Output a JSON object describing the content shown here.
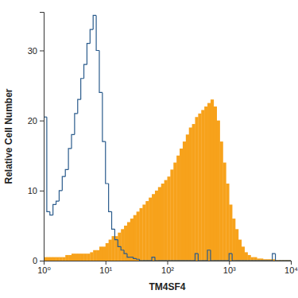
{
  "chart_data": {
    "type": "histogram",
    "x_label": "TM4SF4",
    "y_label": "Relative Cell Number",
    "log": "x",
    "grid": false,
    "xlim": [
      1,
      10000
    ],
    "xticks": [
      {
        "value": 1,
        "label": "10⁰"
      },
      {
        "value": 10,
        "label": "10¹"
      },
      {
        "value": 100,
        "label": "10²"
      },
      {
        "value": 1000,
        "label": "10³"
      },
      {
        "value": 10000,
        "label": "10⁴"
      }
    ],
    "ylim": [
      0,
      35.5
    ],
    "yticks": [
      0,
      10,
      20,
      30
    ],
    "bins": [
      1,
      1.122,
      1.259,
      1.413,
      1.585,
      1.778,
      1.995,
      2.239,
      2.512,
      2.818,
      3.162,
      3.548,
      3.981,
      4.467,
      5.012,
      5.623,
      6.31,
      7.079,
      7.943,
      8.913,
      10,
      11.22,
      12.59,
      14.13,
      15.85,
      17.78,
      19.95,
      22.39,
      25.12,
      28.18,
      31.62,
      35.48,
      39.81,
      44.67,
      50.12,
      56.23,
      63.1,
      70.79,
      79.43,
      89.13,
      100,
      112.2,
      125.9,
      141.3,
      158.5,
      177.8,
      199.5,
      223.9,
      251.2,
      281.8,
      316.2,
      354.8,
      398.1,
      446.7,
      501.2,
      562.3,
      631,
      707.9,
      794.3,
      891.3,
      1000,
      1122,
      1259,
      1413,
      1585,
      1778,
      1995,
      2239,
      2512,
      2818,
      3162,
      3548,
      3981,
      4467,
      5012,
      5623,
      6310,
      7079,
      7943,
      8913,
      10000
    ],
    "series": [
      {
        "type": "bar",
        "color": "#f7a21b",
        "values": [
          0.5,
          0.5,
          0.5,
          0.5,
          0.5,
          0.5,
          0.5,
          0.8,
          0.8,
          1,
          1,
          1,
          1,
          1,
          1,
          1.2,
          1.5,
          1.5,
          2,
          2,
          2.5,
          3,
          3.5,
          3.5,
          4,
          4.5,
          5,
          5.5,
          6,
          6.5,
          7,
          7.5,
          8,
          8.5,
          9,
          9.5,
          10,
          10.5,
          11,
          11.5,
          12,
          13,
          14,
          15,
          16,
          17,
          18,
          19,
          19.5,
          20.5,
          21,
          21.5,
          22,
          22.5,
          23,
          22,
          20,
          17,
          14,
          11,
          8,
          6,
          4.5,
          3,
          2,
          1.2,
          0.8,
          0.5,
          0.5,
          0.3,
          0.3,
          0.2,
          0.2,
          0.2,
          0.2,
          0.1,
          0.1,
          0.1,
          0.1,
          0.1
        ]
      },
      {
        "type": "step",
        "color": "#2a5b8c",
        "values": [
          20.5,
          7,
          6.5,
          8,
          8.5,
          10,
          12,
          13,
          16,
          18,
          21,
          23,
          26,
          28,
          31,
          33,
          35,
          30,
          24,
          17,
          11,
          7,
          4.5,
          3,
          2,
          1.5,
          1,
          0.5,
          0.5,
          0.3,
          0.2,
          0,
          0,
          0,
          0,
          0.5,
          0,
          0,
          0,
          0,
          0,
          0,
          0,
          0,
          0,
          0,
          0,
          0,
          0,
          1,
          0,
          0,
          0,
          1.5,
          0,
          0,
          0,
          0,
          0,
          0,
          1,
          0,
          0,
          0,
          0,
          0,
          0,
          0,
          0,
          0,
          0,
          0,
          0,
          0,
          1,
          0,
          0,
          0,
          0,
          0
        ]
      }
    ]
  }
}
